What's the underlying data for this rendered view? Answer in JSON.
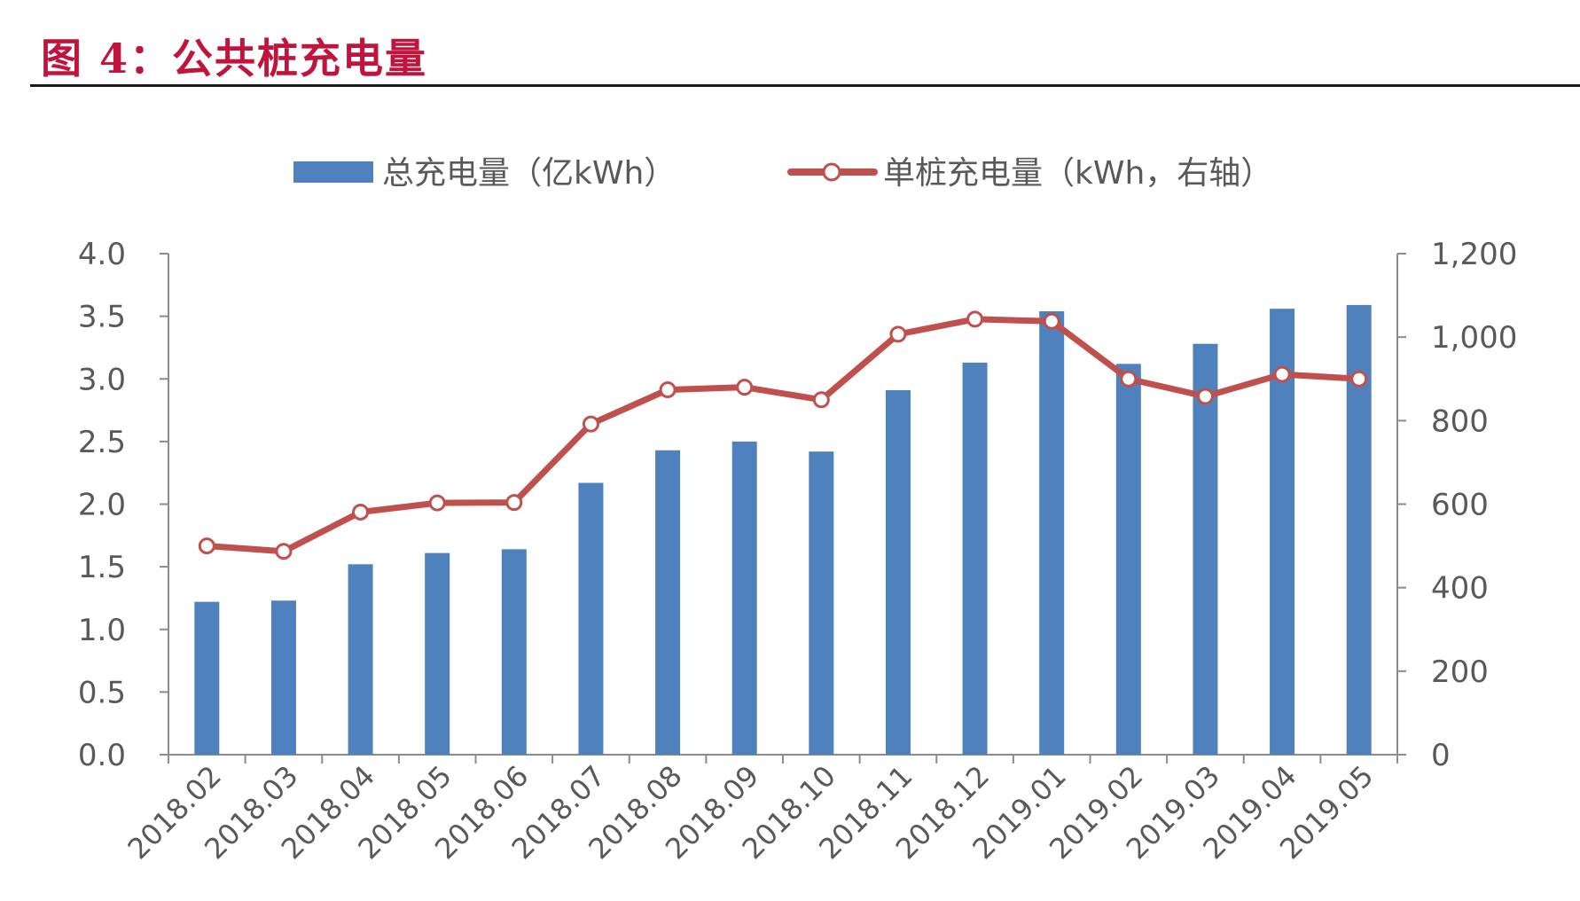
{
  "figure": {
    "title": "图 4：公共桩充电量"
  },
  "chart_data": {
    "type": "bar",
    "categories": [
      "2018.02",
      "2018.03",
      "2018.04",
      "2018.05",
      "2018.06",
      "2018.07",
      "2018.08",
      "2018.09",
      "2018.10",
      "2018.11",
      "2018.12",
      "2019.01",
      "2019.02",
      "2019.03",
      "2019.04",
      "2019.05"
    ],
    "series": [
      {
        "name": "总充电量（亿kWh）",
        "type": "bar",
        "axis": "left",
        "color": "#4f81bd",
        "values": [
          1.22,
          1.23,
          1.52,
          1.61,
          1.64,
          2.17,
          2.43,
          2.5,
          2.42,
          2.91,
          3.13,
          3.54,
          3.12,
          3.28,
          3.56,
          3.59
        ]
      },
      {
        "name": "单桩充电量（kWh，右轴）",
        "type": "line",
        "axis": "right",
        "color": "#c0504d",
        "marker": "circle-hollow",
        "values": [
          500,
          487,
          581,
          603,
          604,
          792,
          874,
          880,
          850,
          1007,
          1043,
          1038,
          900,
          858,
          911,
          900
        ]
      }
    ],
    "y_left": {
      "min": 0,
      "max": 4.0,
      "ticks": [
        "0.0",
        "0.5",
        "1.0",
        "1.5",
        "2.0",
        "2.5",
        "3.0",
        "3.5",
        "4.0"
      ]
    },
    "y_right": {
      "min": 0,
      "max": 1200,
      "ticks": [
        "0",
        "200",
        "400",
        "600",
        "800",
        "1,000",
        "1,200"
      ]
    },
    "grid": false,
    "legend_position": "top-center"
  }
}
